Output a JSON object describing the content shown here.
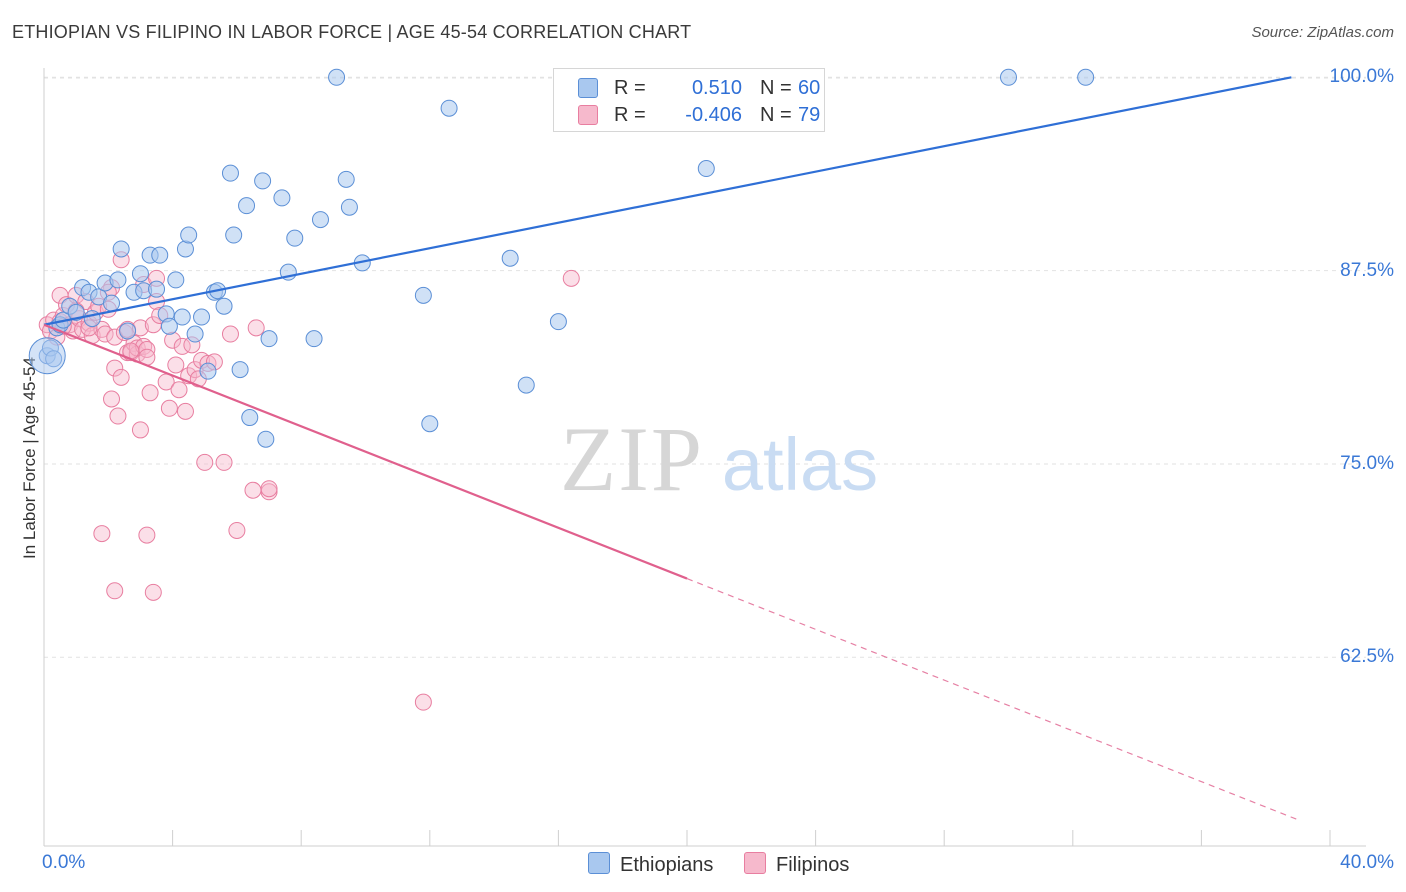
{
  "title": "ETHIOPIAN VS FILIPINO IN LABOR FORCE | AGE 45-54 CORRELATION CHART",
  "source": "Source: ZipAtlas.com",
  "watermark": {
    "zip": "ZIP",
    "atlas": "atlas"
  },
  "legend": {
    "rows": [
      {
        "r_label": "R =",
        "r_value": "0.510",
        "n_label": "N =",
        "n_value": "60"
      },
      {
        "r_label": "R =",
        "r_value": "-0.406",
        "n_label": "N =",
        "n_value": "79"
      }
    ]
  },
  "bottom_legend": [
    "Ethiopians",
    "Filipinos"
  ],
  "colors": {
    "blue_fill": "#a9c8ef",
    "blue_stroke": "#5b8fd6",
    "blue_line": "#2f6fd6",
    "pink_fill": "#f6b9cc",
    "pink_stroke": "#e87ea0",
    "pink_line": "#e0608d",
    "tick_text": "#3a78d6",
    "grid": "#e2e2e2"
  },
  "chart_data": {
    "type": "scatter",
    "title": "ETHIOPIAN VS FILIPINO IN LABOR FORCE | AGE 45-54 CORRELATION CHART",
    "xlabel": "",
    "ylabel": "In Labor Force | Age 45-54",
    "xlim": [
      0,
      40
    ],
    "ylim": [
      50.3,
      100.6
    ],
    "x_tick_labels": [
      "0.0%",
      "40.0%"
    ],
    "y_ticks": [
      {
        "value": 100,
        "label": "100.0%"
      },
      {
        "value": 87.5,
        "label": "87.5%"
      },
      {
        "value": 75,
        "label": "75.0%"
      },
      {
        "value": 62.5,
        "label": "62.5%"
      }
    ],
    "grid": true,
    "legend_position": "top-center",
    "series": [
      {
        "name": "Ethiopians",
        "r": 0.51,
        "n": 60,
        "trend": {
          "x0": 0,
          "y0": 84.0,
          "x1": 38.8,
          "y1": 100.0,
          "dashed_from": null
        },
        "points": [
          [
            0.1,
            82.0
          ],
          [
            0.2,
            82.5
          ],
          [
            0.3,
            81.8
          ],
          [
            0.4,
            83.8
          ],
          [
            0.5,
            84.0
          ],
          [
            0.6,
            84.3
          ],
          [
            0.8,
            85.2
          ],
          [
            1.0,
            84.8
          ],
          [
            1.2,
            86.4
          ],
          [
            1.4,
            86.1
          ],
          [
            1.5,
            84.4
          ],
          [
            1.7,
            85.8
          ],
          [
            1.9,
            86.7
          ],
          [
            2.1,
            85.4
          ],
          [
            2.3,
            86.9
          ],
          [
            2.4,
            88.9
          ],
          [
            2.6,
            83.6
          ],
          [
            2.8,
            86.1
          ],
          [
            3.0,
            87.3
          ],
          [
            3.1,
            86.2
          ],
          [
            3.3,
            88.5
          ],
          [
            3.5,
            86.3
          ],
          [
            3.6,
            88.5
          ],
          [
            3.8,
            84.7
          ],
          [
            3.9,
            83.9
          ],
          [
            4.1,
            86.9
          ],
          [
            4.3,
            84.5
          ],
          [
            4.4,
            88.9
          ],
          [
            4.5,
            89.8
          ],
          [
            4.7,
            83.4
          ],
          [
            4.9,
            84.5
          ],
          [
            5.1,
            81.0
          ],
          [
            5.3,
            86.1
          ],
          [
            5.4,
            86.2
          ],
          [
            5.6,
            85.2
          ],
          [
            5.8,
            93.8
          ],
          [
            5.9,
            89.8
          ],
          [
            6.1,
            81.1
          ],
          [
            6.3,
            91.7
          ],
          [
            6.4,
            78.0
          ],
          [
            6.8,
            93.3
          ],
          [
            6.9,
            76.6
          ],
          [
            7.0,
            83.1
          ],
          [
            7.4,
            92.2
          ],
          [
            7.6,
            87.4
          ],
          [
            7.8,
            89.6
          ],
          [
            8.4,
            83.1
          ],
          [
            8.6,
            90.8
          ],
          [
            9.1,
            100.0
          ],
          [
            9.4,
            93.4
          ],
          [
            9.5,
            91.6
          ],
          [
            9.9,
            88.0
          ],
          [
            11.8,
            85.9
          ],
          [
            12.0,
            77.6
          ],
          [
            12.6,
            98.0
          ],
          [
            14.5,
            88.3
          ],
          [
            15.0,
            80.1
          ],
          [
            16.0,
            84.2
          ],
          [
            20.6,
            94.1
          ],
          [
            30.0,
            100.0
          ]
        ],
        "points_extra": [
          [
            32.4,
            100.0
          ]
        ]
      },
      {
        "name": "Filipinos",
        "r": -0.406,
        "n": 79,
        "trend": {
          "x0": 0,
          "y0": 84.0,
          "x1": 39.0,
          "y1": 52.0,
          "dashed_from": 20.0
        },
        "points": [
          [
            0.1,
            84.0
          ],
          [
            0.2,
            83.6
          ],
          [
            0.3,
            84.3
          ],
          [
            0.4,
            83.2
          ],
          [
            0.5,
            84.2
          ],
          [
            0.5,
            85.9
          ],
          [
            0.6,
            84.6
          ],
          [
            0.7,
            85.3
          ],
          [
            0.8,
            84.0
          ],
          [
            0.9,
            83.6
          ],
          [
            1.0,
            85.9
          ],
          [
            1.1,
            84.4
          ],
          [
            1.2,
            83.7
          ],
          [
            1.3,
            85.5
          ],
          [
            1.4,
            84.1
          ],
          [
            1.5,
            83.3
          ],
          [
            1.6,
            84.8
          ],
          [
            1.7,
            85.2
          ],
          [
            1.8,
            83.7
          ],
          [
            1.9,
            83.4
          ],
          [
            2.0,
            85.0
          ],
          [
            2.1,
            86.4
          ],
          [
            2.2,
            83.2
          ],
          [
            2.2,
            81.2
          ],
          [
            2.1,
            79.2
          ],
          [
            2.3,
            78.1
          ],
          [
            2.4,
            80.6
          ],
          [
            2.5,
            83.5
          ],
          [
            2.6,
            82.2
          ],
          [
            2.6,
            83.7
          ],
          [
            2.7,
            82.2
          ],
          [
            2.8,
            82.8
          ],
          [
            2.9,
            82.1
          ],
          [
            2.9,
            82.5
          ],
          [
            3.0,
            83.8
          ],
          [
            3.1,
            86.6
          ],
          [
            3.1,
            82.6
          ],
          [
            3.2,
            82.4
          ],
          [
            3.2,
            81.9
          ],
          [
            3.3,
            79.6
          ],
          [
            3.4,
            84.0
          ],
          [
            3.5,
            85.5
          ],
          [
            3.5,
            87.0
          ],
          [
            3.6,
            84.6
          ],
          [
            3.8,
            80.3
          ],
          [
            3.9,
            78.6
          ],
          [
            4.0,
            83.0
          ],
          [
            4.1,
            81.4
          ],
          [
            4.2,
            79.8
          ],
          [
            4.3,
            82.6
          ],
          [
            4.4,
            78.4
          ],
          [
            4.5,
            80.7
          ],
          [
            4.6,
            82.7
          ],
          [
            4.7,
            81.1
          ],
          [
            4.9,
            81.7
          ],
          [
            5.0,
            75.1
          ],
          [
            5.1,
            81.5
          ],
          [
            5.3,
            81.6
          ],
          [
            5.6,
            75.1
          ],
          [
            5.8,
            83.4
          ],
          [
            6.0,
            70.7
          ],
          [
            6.5,
            73.3
          ],
          [
            6.6,
            83.8
          ],
          [
            7.0,
            73.2
          ],
          [
            1.8,
            70.5
          ],
          [
            2.2,
            66.8
          ],
          [
            2.4,
            88.2
          ],
          [
            3.2,
            70.4
          ],
          [
            3.4,
            66.7
          ],
          [
            2.0,
            86.1
          ],
          [
            1.0,
            84.9
          ],
          [
            0.6,
            83.9
          ],
          [
            3.0,
            77.2
          ],
          [
            1.4,
            83.8
          ],
          [
            2.7,
            82.3
          ],
          [
            4.8,
            80.5
          ],
          [
            7.0,
            73.4
          ],
          [
            16.4,
            87.0
          ],
          [
            11.8,
            59.6
          ]
        ]
      }
    ]
  }
}
